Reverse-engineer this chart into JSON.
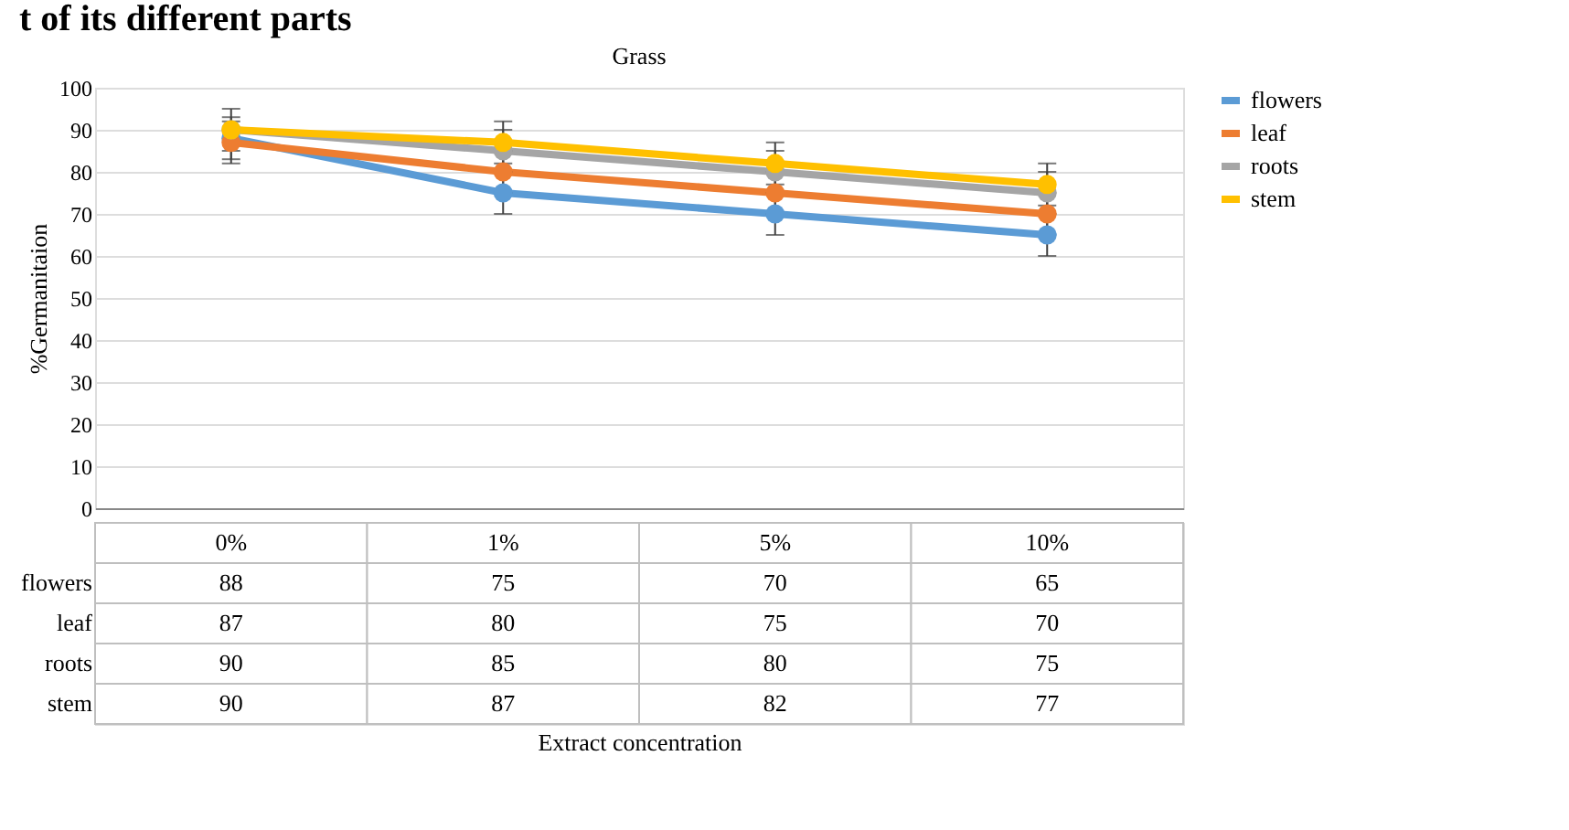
{
  "chart_data": {
    "type": "line",
    "title": "Grass",
    "ylabel": "%Germanitaion",
    "annotations": [
      "t of its different parts",
      "Extract concentration"
    ],
    "categories": [
      "0%",
      "1%",
      "5%",
      "10%"
    ],
    "series": [
      {
        "name": "flowers",
        "color": "#5b9bd5",
        "values": [
          88,
          75,
          70,
          65
        ],
        "errors": [
          5,
          5,
          5,
          5
        ]
      },
      {
        "name": "leaf",
        "color": "#ed7d31",
        "values": [
          87,
          80,
          75,
          70
        ],
        "errors": [
          5,
          5,
          5,
          5
        ]
      },
      {
        "name": "roots",
        "color": "#a5a5a5",
        "values": [
          90,
          85,
          80,
          75
        ],
        "errors": [
          5,
          5,
          5,
          5
        ]
      },
      {
        "name": "stem",
        "color": "#ffc000",
        "values": [
          90,
          87,
          82,
          77
        ],
        "errors": [
          5,
          5,
          5,
          5
        ]
      }
    ],
    "ylim": [
      0,
      100
    ],
    "yticks": [
      0,
      10,
      20,
      30,
      40,
      50,
      60,
      70,
      80,
      90,
      100
    ],
    "grid": "y",
    "legend": "right",
    "marker": "circle",
    "line_style": "solid",
    "data_labels": true
  }
}
